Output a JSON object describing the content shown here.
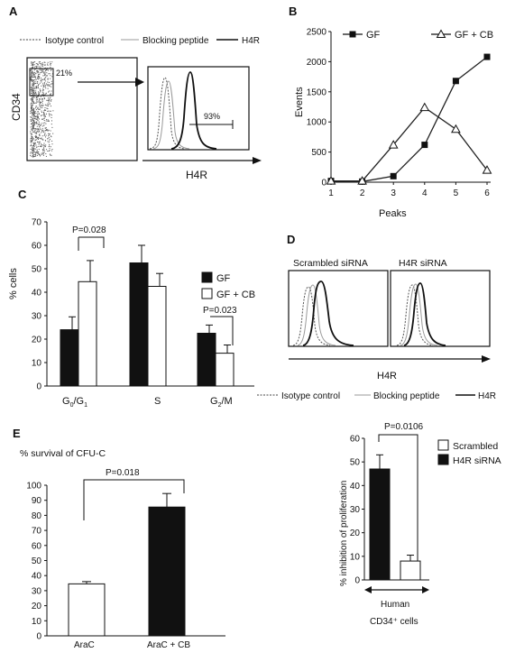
{
  "panels": {
    "A": {
      "letter": "A",
      "legend": [
        "Isotype control",
        "Blocking peptide",
        "H4R"
      ],
      "ylabel": "CD34",
      "gate_pct": "21%",
      "hist_pct": "93%",
      "xlabel": "H4R"
    },
    "C": {
      "letter": "C",
      "p1": "P=0.028",
      "p2": "P=0.023"
    },
    "D": {
      "letter": "D",
      "hist_titles": [
        "Scrambled siRNA",
        "H4R siRNA"
      ],
      "xlabel": "H4R",
      "legend": [
        "Isotype control",
        "Blocking peptide",
        "H4R"
      ]
    },
    "E": {
      "letter": "E",
      "p": "P=0.018"
    },
    "F": {
      "p": "P=0.0106",
      "xlabel_line1": "Human",
      "xlabel_line2": "CD34⁺ cells"
    }
  },
  "chart_data": [
    {
      "id": "B",
      "type": "line",
      "title": "B",
      "xlabel": "Peaks",
      "ylabel": "Events",
      "x": [
        1,
        2,
        3,
        4,
        5,
        6
      ],
      "xlim": [
        1,
        6
      ],
      "ylim": [
        0,
        2500
      ],
      "yticks": [
        0,
        500,
        1000,
        1500,
        2000,
        2500
      ],
      "legend_position": "top",
      "series": [
        {
          "name": "GF",
          "marker": "square",
          "values": [
            20,
            10,
            100,
            620,
            1680,
            2080
          ]
        },
        {
          "name": "GF + CB",
          "marker": "triangle",
          "values": [
            20,
            20,
            620,
            1240,
            880,
            200
          ]
        }
      ]
    },
    {
      "id": "C",
      "type": "bar",
      "title": "C",
      "ylabel": "% cells",
      "ylim": [
        0,
        70
      ],
      "yticks": [
        0,
        10,
        20,
        30,
        40,
        50,
        60,
        70
      ],
      "categories": [
        "G0/G1",
        "S",
        "G2/M"
      ],
      "legend_position": "right",
      "series": [
        {
          "name": "GF",
          "color": "#111111",
          "values": [
            24,
            52.5,
            22.5
          ],
          "errors": [
            5.5,
            7.5,
            3.5
          ]
        },
        {
          "name": "GF + CB",
          "color": "#ffffff",
          "values": [
            44.5,
            42.5,
            14
          ],
          "errors": [
            9,
            5.5,
            3.5
          ]
        }
      ]
    },
    {
      "id": "E",
      "type": "bar",
      "title": "E",
      "ylabel": "% survival of CFU-C",
      "ylim": [
        0,
        100
      ],
      "yticks": [
        0,
        10,
        20,
        30,
        40,
        50,
        60,
        70,
        80,
        90,
        100
      ],
      "categories": [
        "AraC",
        "AraC + CB"
      ],
      "values": [
        34.5,
        85.5
      ],
      "errors": [
        1.5,
        9
      ],
      "colors": [
        "#ffffff",
        "#111111"
      ]
    },
    {
      "id": "F",
      "type": "bar",
      "ylabel": "% inhibition of proliferation",
      "ylim": [
        0,
        60
      ],
      "yticks": [
        0,
        10,
        20,
        30,
        40,
        50,
        60
      ],
      "legend_position": "right",
      "series": [
        {
          "name": "Scrambled",
          "color": "#ffffff",
          "value": 8,
          "error": 2.5
        },
        {
          "name": "H4R siRNA",
          "color": "#111111",
          "value": 47,
          "error": 6
        }
      ]
    }
  ]
}
